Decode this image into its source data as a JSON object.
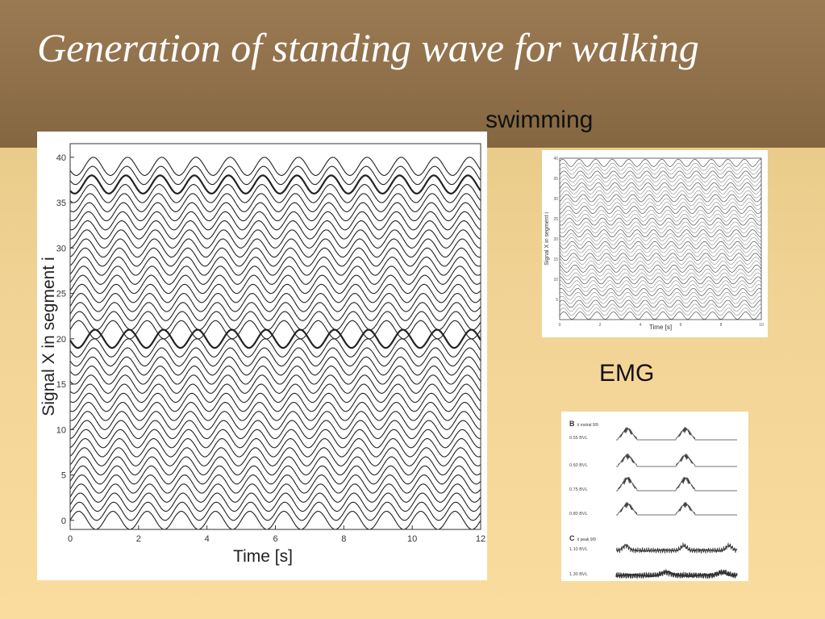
{
  "slide": {
    "title": "Generation of standing wave for walking",
    "label_swimming": "swimming",
    "label_emg": "EMG",
    "colors": {
      "header": "#8e6f4a",
      "background": "#f0d394",
      "title_text": "#ffffff"
    }
  },
  "chart_data": [
    {
      "type": "line",
      "id": "walking",
      "title": "",
      "xlabel": "Time [s]",
      "ylabel": "Signal X in segment i",
      "xlim": [
        0,
        12
      ],
      "ylim": [
        -1,
        41.5
      ],
      "x_ticks": [
        "0",
        "2",
        "4",
        "6",
        "8",
        "10",
        "12"
      ],
      "y_ticks": [
        "0",
        "5",
        "10",
        "15",
        "20",
        "25",
        "30",
        "35",
        "40"
      ],
      "segments": 40,
      "period_s": 1,
      "amplitude": 1,
      "grid": false,
      "legend": "none"
    },
    {
      "type": "line",
      "id": "swimming",
      "title": "",
      "xlabel": "Time [s]",
      "ylabel": "Signal X in segment i",
      "xlim": [
        0,
        10
      ],
      "ylim": [
        0,
        40
      ],
      "x_ticks": [
        "0",
        "2",
        "4",
        "6",
        "8",
        "10"
      ],
      "y_ticks": [
        "5",
        "10",
        "15",
        "20",
        "25",
        "30",
        "35",
        "40"
      ],
      "segments": 40,
      "period_s": 0.82,
      "grid": false,
      "legend": "none"
    },
    {
      "type": "line",
      "id": "emg",
      "panels": [
        {
          "letter": "B",
          "condition": "ii rostral 9/9",
          "traces": [
            "0.55 BVL",
            "0.60 BVL",
            "0.75 BVL",
            "0.80 BVL"
          ]
        },
        {
          "letter": "C",
          "condition": "ii peak 9/9",
          "traces": [
            "1.10 BVL",
            "1.30 BVL"
          ]
        }
      ]
    }
  ]
}
